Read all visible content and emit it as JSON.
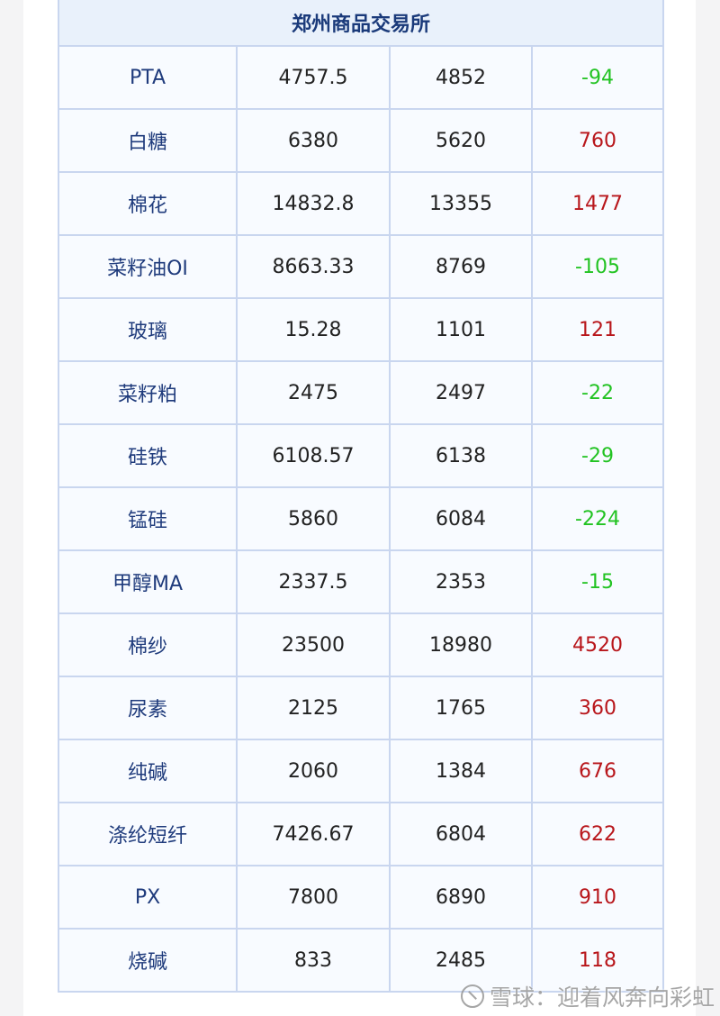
{
  "table": {
    "title": "郑州商品交易所",
    "rows": [
      {
        "name": "PTA",
        "a": "4757.5",
        "b": "4852",
        "diff": "-94"
      },
      {
        "name": "白糖",
        "a": "6380",
        "b": "5620",
        "diff": "760"
      },
      {
        "name": "棉花",
        "a": "14832.8",
        "b": "13355",
        "diff": "1477"
      },
      {
        "name": "菜籽油OI",
        "a": "8663.33",
        "b": "8769",
        "diff": "-105"
      },
      {
        "name": "玻璃",
        "a": "15.28",
        "b": "1101",
        "diff": "121"
      },
      {
        "name": "菜籽粕",
        "a": "2475",
        "b": "2497",
        "diff": "-22"
      },
      {
        "name": "硅铁",
        "a": "6108.57",
        "b": "6138",
        "diff": "-29"
      },
      {
        "name": "锰硅",
        "a": "5860",
        "b": "6084",
        "diff": "-224"
      },
      {
        "name": "甲醇MA",
        "a": "2337.5",
        "b": "2353",
        "diff": "-15"
      },
      {
        "name": "棉纱",
        "a": "23500",
        "b": "18980",
        "diff": "4520"
      },
      {
        "name": "尿素",
        "a": "2125",
        "b": "1765",
        "diff": "360"
      },
      {
        "name": "纯碱",
        "a": "2060",
        "b": "1384",
        "diff": "676"
      },
      {
        "name": "涤纶短纤",
        "a": "7426.67",
        "b": "6804",
        "diff": "622"
      },
      {
        "name": "PX",
        "a": "7800",
        "b": "6890",
        "diff": "910"
      },
      {
        "name": "烧碱",
        "a": "833",
        "b": "2485",
        "diff": "118"
      }
    ]
  },
  "colors": {
    "negative": "#22c322",
    "positive": "#b8161b",
    "name": "#1f3b7c"
  },
  "watermark": {
    "text": "雪球：迎着风奔向彩虹",
    "icon": "xueqiu-logo-icon"
  }
}
